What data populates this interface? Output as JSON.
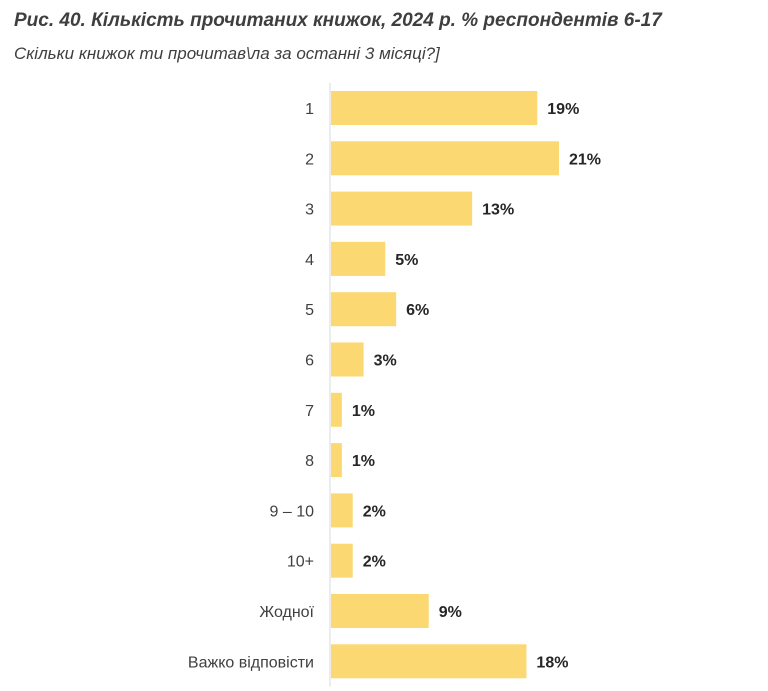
{
  "chart_data": {
    "type": "bar",
    "orientation": "horizontal",
    "title": "Рис. 40. Кількість прочитаних книжок, 2024 р. % респондентів 6-17",
    "subtitle": "Скільки книжок ти прочитав\\ла за останні 3 місяці?]",
    "categories": [
      "1",
      "2",
      "3",
      "4",
      "5",
      "6",
      "7",
      "8",
      "9 – 10",
      "10+",
      "Жодної",
      "Важко відповісти"
    ],
    "values": [
      19,
      21,
      13,
      5,
      6,
      3,
      1,
      1,
      2,
      2,
      9,
      18
    ],
    "value_labels": [
      "19%",
      "21%",
      "13%",
      "5%",
      "6%",
      "3%",
      "1%",
      "1%",
      "2%",
      "2%",
      "9%",
      "18%"
    ],
    "unit": "%",
    "xlim": [
      0,
      21
    ],
    "grid": false,
    "bar_color": "#FBD872"
  }
}
